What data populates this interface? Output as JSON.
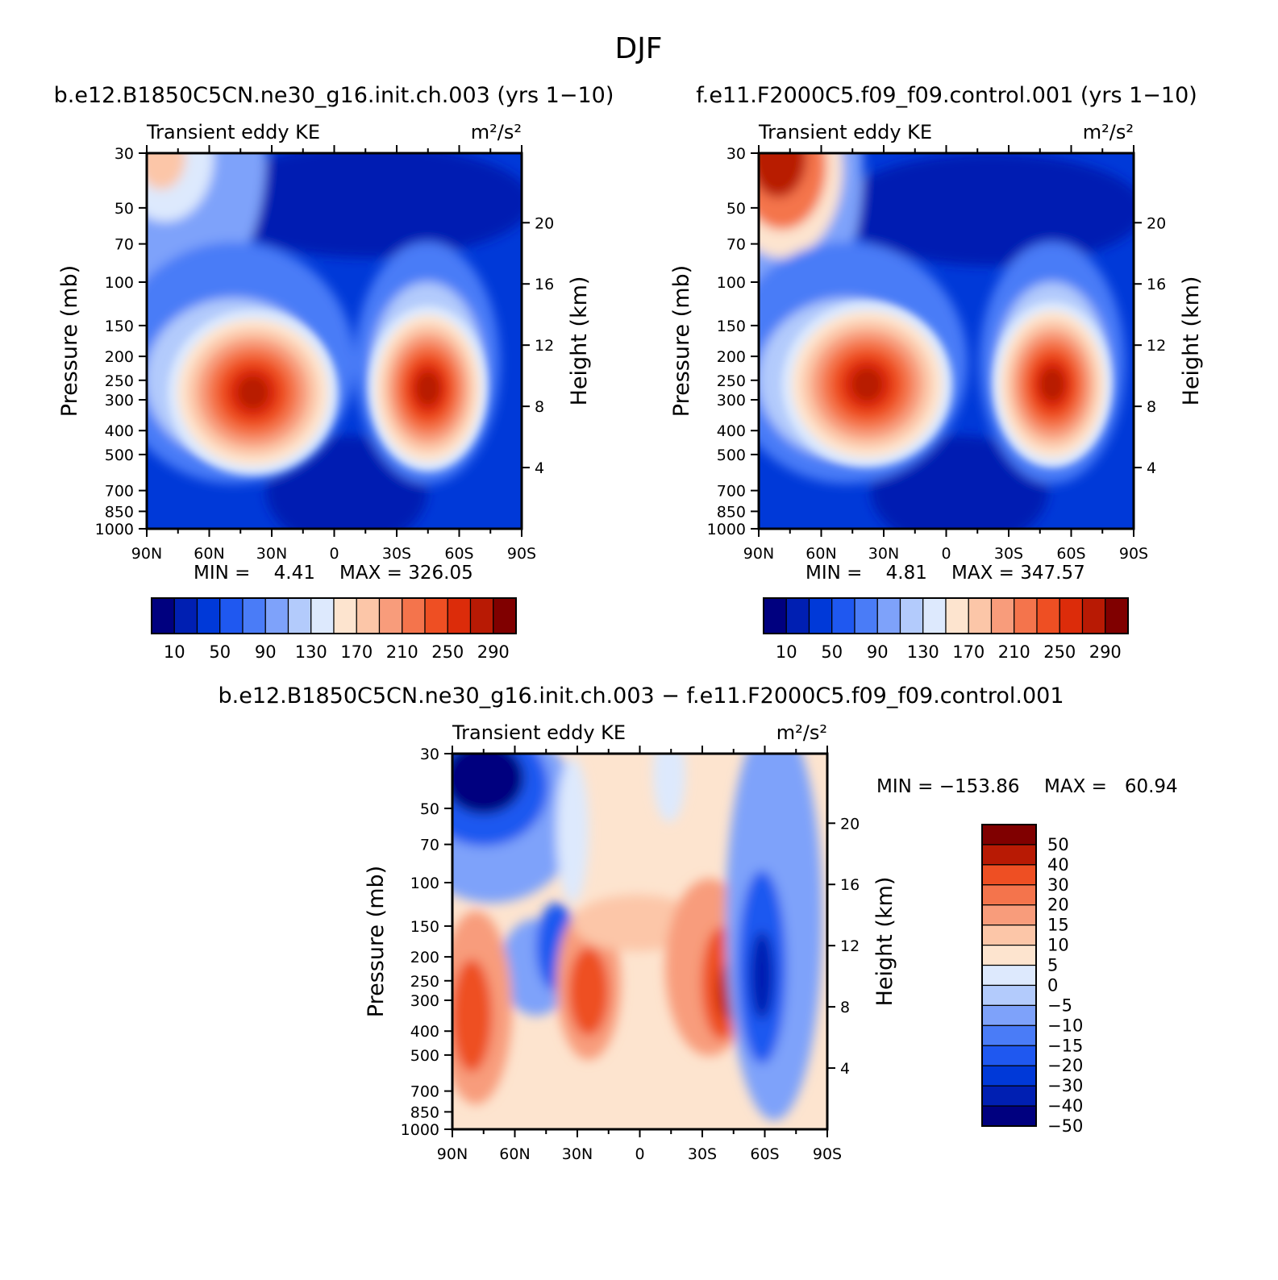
{
  "title": "DJF",
  "chart_data": [
    {
      "type": "heatmap",
      "title": "b.e12.B1850C5CN.ne30_g16.init.ch.003 (yrs 1−10)",
      "left_string": "Transient eddy KE",
      "units": "m²/s²",
      "xlabel": "",
      "ylabel": "Pressure (mb)",
      "ylabel_right": "Height (km)",
      "x_ticks": [
        "90N",
        "60N",
        "30N",
        "0",
        "30S",
        "60S",
        "90S"
      ],
      "y_ticks": [
        "30",
        "50",
        "70",
        "100",
        "150",
        "200",
        "250",
        "300",
        "400",
        "500",
        "700",
        "850",
        "1000"
      ],
      "y_ticks_right": [
        "20",
        "16",
        "12",
        "8",
        "4"
      ],
      "min_label": "MIN =    4.41",
      "max_label": "MAX = 326.05",
      "colorbar_labels": [
        "10",
        "50",
        "90",
        "130",
        "170",
        "210",
        "250",
        "290"
      ],
      "colorbar_orientation": "horizontal",
      "colors": [
        "#00007f",
        "#001fb2",
        "#0039d8",
        "#1f58f0",
        "#4a7cf7",
        "#7ea2fa",
        "#b3cbfc",
        "#dde9fd",
        "#fde4cf",
        "#fcc6a8",
        "#f89c7b",
        "#f4744c",
        "#ee4f23",
        "#dc2c0a",
        "#b81a04",
        "#800000"
      ],
      "jets": [
        {
          "lat": 39,
          "pressure": 280,
          "value": 320
        },
        {
          "lat": -45,
          "pressure": 270,
          "value": 326
        }
      ]
    },
    {
      "type": "heatmap",
      "title": "f.e11.F2000C5.f09_f09.control.001 (yrs 1−10)",
      "left_string": "Transient eddy KE",
      "units": "m²/s²",
      "xlabel": "",
      "ylabel": "Pressure (mb)",
      "ylabel_right": "Height (km)",
      "x_ticks": [
        "90N",
        "60N",
        "30N",
        "0",
        "30S",
        "60S",
        "90S"
      ],
      "y_ticks": [
        "30",
        "50",
        "70",
        "100",
        "150",
        "200",
        "250",
        "300",
        "400",
        "500",
        "700",
        "850",
        "1000"
      ],
      "y_ticks_right": [
        "20",
        "16",
        "12",
        "8",
        "4"
      ],
      "min_label": "MIN =    4.81",
      "max_label": "MAX = 347.57",
      "colorbar_labels": [
        "10",
        "50",
        "90",
        "130",
        "170",
        "210",
        "250",
        "290"
      ],
      "colorbar_orientation": "horizontal",
      "colors": [
        "#00007f",
        "#001fb2",
        "#0039d8",
        "#1f58f0",
        "#4a7cf7",
        "#7ea2fa",
        "#b3cbfc",
        "#dde9fd",
        "#fde4cf",
        "#fcc6a8",
        "#f89c7b",
        "#f4744c",
        "#ee4f23",
        "#dc2c0a",
        "#b81a04",
        "#800000"
      ],
      "jets": [
        {
          "lat": 38,
          "pressure": 260,
          "value": 330
        },
        {
          "lat": -51,
          "pressure": 260,
          "value": 347.57
        },
        {
          "lat": 80,
          "pressure": 30,
          "value": 340
        }
      ]
    },
    {
      "type": "heatmap",
      "title": "b.e12.B1850C5CN.ne30_g16.init.ch.003 − f.e11.F2000C5.f09_f09.control.001",
      "left_string": "Transient eddy KE",
      "units": "m²/s²",
      "xlabel": "",
      "ylabel": "Pressure (mb)",
      "ylabel_right": "Height (km)",
      "x_ticks": [
        "90N",
        "60N",
        "30N",
        "0",
        "30S",
        "60S",
        "90S"
      ],
      "y_ticks": [
        "30",
        "50",
        "70",
        "100",
        "150",
        "200",
        "250",
        "300",
        "400",
        "500",
        "700",
        "850",
        "1000"
      ],
      "y_ticks_right": [
        "20",
        "16",
        "12",
        "8",
        "4"
      ],
      "min_label": "MIN = −153.86",
      "max_label": "MAX =   60.94",
      "colorbar_labels": [
        "50",
        "40",
        "30",
        "20",
        "15",
        "10",
        "5",
        "0",
        "−5",
        "−10",
        "−15",
        "−20",
        "−30",
        "−40",
        "−50"
      ],
      "colorbar_orientation": "vertical",
      "colors": [
        "#800000",
        "#b81a04",
        "#ee4f23",
        "#f4744c",
        "#f89c7b",
        "#fcc6a8",
        "#fde4cf",
        "#dde9fd",
        "#b3cbfc",
        "#7ea2fa",
        "#4a7cf7",
        "#1f58f0",
        "#0039d8",
        "#001fb2",
        "#00007f"
      ]
    }
  ]
}
